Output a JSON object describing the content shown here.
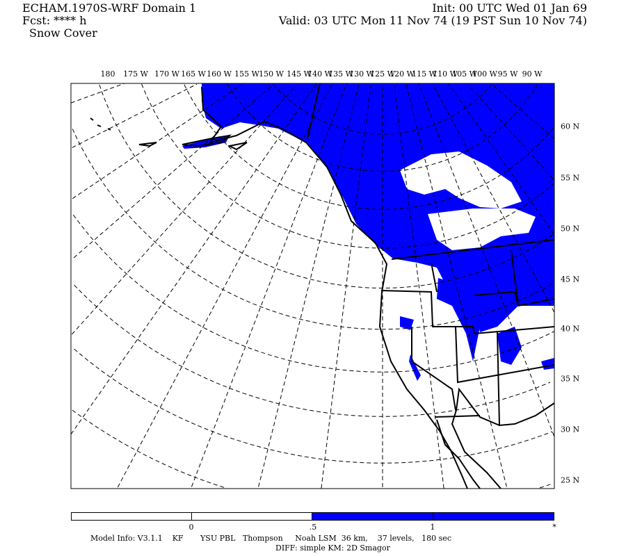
{
  "header": {
    "title": "ECHAM.1970S-WRF Domain 1",
    "init": "Init: 00 UTC Wed 01 Jan 69",
    "fcst": "Fcst: **** h",
    "valid": "Valid: 03 UTC Mon 11 Nov 74 (19 PST Sun 10 Nov 74)",
    "field": "Snow Cover"
  },
  "map": {
    "lon_labels": [
      "180",
      "175 W",
      "170 W",
      "165 W",
      "160 W",
      "155 W",
      "150 W",
      "145 W",
      "140 W",
      "135 W",
      "130 W",
      "125 W",
      "120 W",
      "115 W",
      "110 W",
      "105 W",
      "100 W",
      "95 W",
      "90 W"
    ],
    "lat_labels": [
      "60 N",
      "55 N",
      "50 N",
      "45 N",
      "40 N",
      "35 N",
      "30 N",
      "25 N"
    ],
    "colors": {
      "snow": "#0000ff",
      "land": "#ffffff",
      "coast": "#000000"
    }
  },
  "legend": {
    "labels": [
      "0",
      ".5",
      "1",
      "*"
    ],
    "colors": [
      "#ffffff",
      "#ffffff",
      "#0000ff",
      "#0000ff"
    ]
  },
  "footer": {
    "model_info": "Model Info: V3.1.1    KF       YSU PBL   Thompson     Noah LSM  36 km,    37 levels,   180 sec",
    "diff": "DIFF: simple KM: 2D Smagor"
  }
}
